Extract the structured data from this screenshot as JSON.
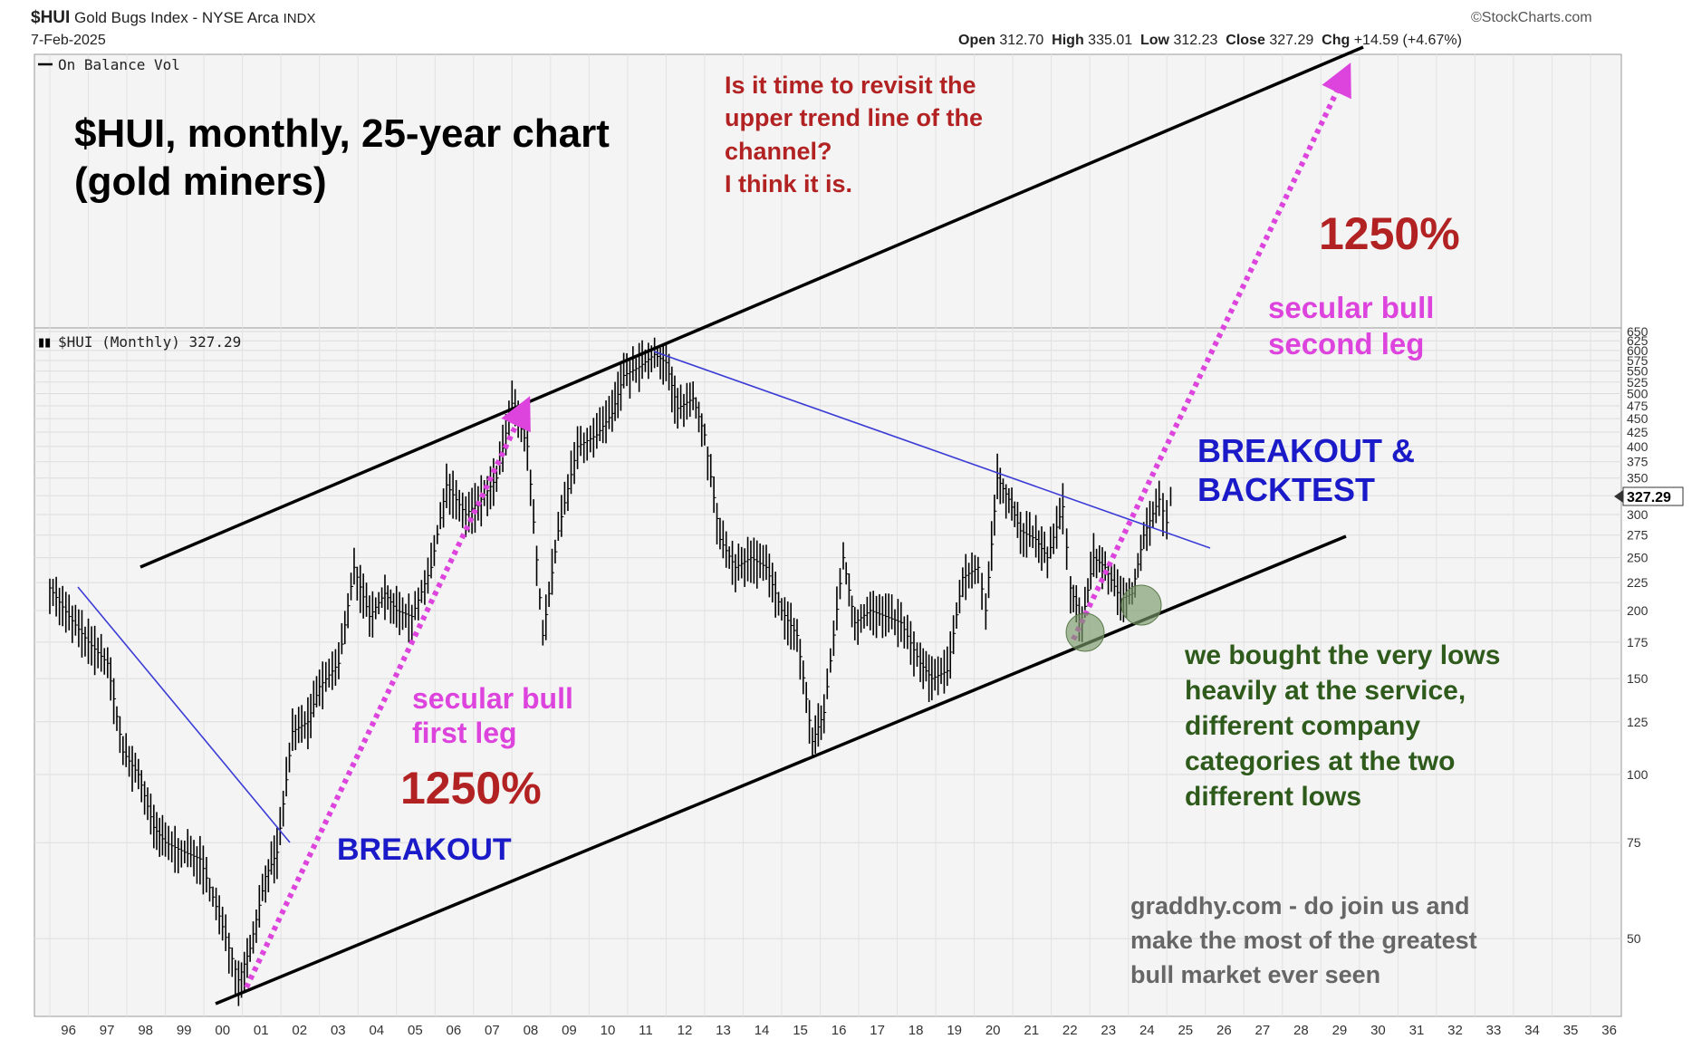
{
  "header": {
    "symbol": "$HUI",
    "name": "Gold Bugs Index - NYSE Arca",
    "exchange_tag": "INDX",
    "date": "7-Feb-2025",
    "source": "©StockCharts.com",
    "ohlc": {
      "open_label": "Open",
      "open": "312.70",
      "high_label": "High",
      "high": "335.01",
      "low_label": "Low",
      "low": "312.23",
      "close_label": "Close",
      "close": "327.29",
      "chg_label": "Chg",
      "chg": "+14.59 (+4.67%)"
    }
  },
  "panels": {
    "top_label": "On Balance Vol",
    "main_label": "$HUI (Monthly) 327.29",
    "last_price_tag": "327.29"
  },
  "annotations": {
    "title": "$HUI, monthly, 25-year chart\n(gold miners)",
    "question": "Is it time to revisit the\nupper trend line of the\nchannel?\nI think it is.",
    "pct_top": "1250%",
    "secular_second": "secular bull\nsecond leg",
    "breakout_backtest": "BREAKOUT &\nBACKTEST",
    "secular_first": "secular bull\nfirst leg",
    "pct_first": "1250%",
    "breakout": "BREAKOUT",
    "bought_lows": "we bought the very lows\nheavily at the service,\ndifferent company\ncategories at the two\ndifferent lows",
    "promo": "graddhy.com - do join us and\nmake the most of the greatest\nbull market ever seen"
  },
  "colors": {
    "background": "#ffffff",
    "panel_bg": "#f4f4f4",
    "price_bars": "#000000",
    "channel_lines": "#000000",
    "downtrend_lines": "#3b3bd6",
    "arrows": "#dd44dd",
    "red_text": "#b22222",
    "pink_text": "#dd44dd",
    "blue_text": "#1a1ac8",
    "green_text": "#2e5a1c",
    "grey_text": "#666666",
    "circle_fill": "#7a9a6a"
  },
  "chart_data": {
    "type": "bar",
    "title": "$HUI (Monthly) 327.29",
    "scale": "log",
    "x_tick_labels": [
      "96",
      "97",
      "98",
      "99",
      "00",
      "01",
      "02",
      "03",
      "04",
      "05",
      "06",
      "07",
      "08",
      "09",
      "10",
      "11",
      "12",
      "13",
      "14",
      "15",
      "16",
      "17",
      "18",
      "19",
      "20",
      "21",
      "22",
      "23",
      "24",
      "25",
      "26",
      "27",
      "28",
      "29",
      "30",
      "31",
      "32",
      "33",
      "34",
      "35",
      "36"
    ],
    "y_tick_labels": [
      "650",
      "625",
      "600",
      "575",
      "550",
      "525",
      "500",
      "475",
      "450",
      "425",
      "400",
      "375",
      "350",
      "325",
      "300",
      "275",
      "250",
      "225",
      "200",
      "175",
      "150",
      "125",
      "100",
      "75",
      "50"
    ],
    "y_tick_values": [
      650,
      625,
      600,
      575,
      550,
      525,
      500,
      475,
      450,
      425,
      400,
      375,
      350,
      325,
      300,
      275,
      250,
      225,
      200,
      175,
      150,
      125,
      100,
      75,
      50
    ],
    "ylim": [
      36,
      660
    ],
    "xlim": [
      1995.6,
      2036.8
    ],
    "grid": true,
    "series": [
      {
        "name": "$HUI (Monthly)",
        "points": [
          [
            1996.0,
            220
          ],
          [
            1996.5,
            195
          ],
          [
            1997.0,
            175
          ],
          [
            1997.5,
            160
          ],
          [
            1997.9,
            110
          ],
          [
            1998.3,
            100
          ],
          [
            1998.7,
            80
          ],
          [
            1999.0,
            75
          ],
          [
            1999.5,
            72
          ],
          [
            1999.9,
            70
          ],
          [
            2000.4,
            55
          ],
          [
            2000.9,
            42
          ],
          [
            2001.2,
            48
          ],
          [
            2001.6,
            65
          ],
          [
            2001.9,
            72
          ],
          [
            2002.3,
            120
          ],
          [
            2002.7,
            125
          ],
          [
            2003.0,
            145
          ],
          [
            2003.5,
            160
          ],
          [
            2003.9,
            240
          ],
          [
            2004.3,
            195
          ],
          [
            2004.7,
            215
          ],
          [
            2005.0,
            200
          ],
          [
            2005.4,
            195
          ],
          [
            2005.9,
            240
          ],
          [
            2006.3,
            340
          ],
          [
            2006.8,
            300
          ],
          [
            2007.2,
            320
          ],
          [
            2007.6,
            350
          ],
          [
            2008.0,
            480
          ],
          [
            2008.4,
            400
          ],
          [
            2008.8,
            180
          ],
          [
            2009.2,
            280
          ],
          [
            2009.7,
            400
          ],
          [
            2010.2,
            420
          ],
          [
            2010.6,
            460
          ],
          [
            2010.9,
            540
          ],
          [
            2011.3,
            560
          ],
          [
            2011.7,
            590
          ],
          [
            2012.0,
            570
          ],
          [
            2012.3,
            470
          ],
          [
            2012.7,
            490
          ],
          [
            2013.0,
            420
          ],
          [
            2013.4,
            270
          ],
          [
            2013.8,
            240
          ],
          [
            2014.2,
            250
          ],
          [
            2014.6,
            240
          ],
          [
            2015.0,
            200
          ],
          [
            2015.4,
            180
          ],
          [
            2015.8,
            115
          ],
          [
            2016.1,
            130
          ],
          [
            2016.6,
            250
          ],
          [
            2016.9,
            190
          ],
          [
            2017.3,
            200
          ],
          [
            2017.7,
            195
          ],
          [
            2018.1,
            190
          ],
          [
            2018.6,
            160
          ],
          [
            2018.9,
            150
          ],
          [
            2019.3,
            155
          ],
          [
            2019.7,
            230
          ],
          [
            2020.1,
            240
          ],
          [
            2020.3,
            200
          ],
          [
            2020.6,
            350
          ],
          [
            2020.9,
            320
          ],
          [
            2021.2,
            280
          ],
          [
            2021.6,
            270
          ],
          [
            2021.9,
            250
          ],
          [
            2022.3,
            310
          ],
          [
            2022.5,
            220
          ],
          [
            2022.8,
            190
          ],
          [
            2023.1,
            250
          ],
          [
            2023.4,
            240
          ],
          [
            2023.8,
            210
          ],
          [
            2024.1,
            215
          ],
          [
            2024.4,
            275
          ],
          [
            2024.8,
            320
          ],
          [
            2025.0,
            290
          ],
          [
            2025.1,
            327.29
          ]
        ]
      }
    ]
  }
}
